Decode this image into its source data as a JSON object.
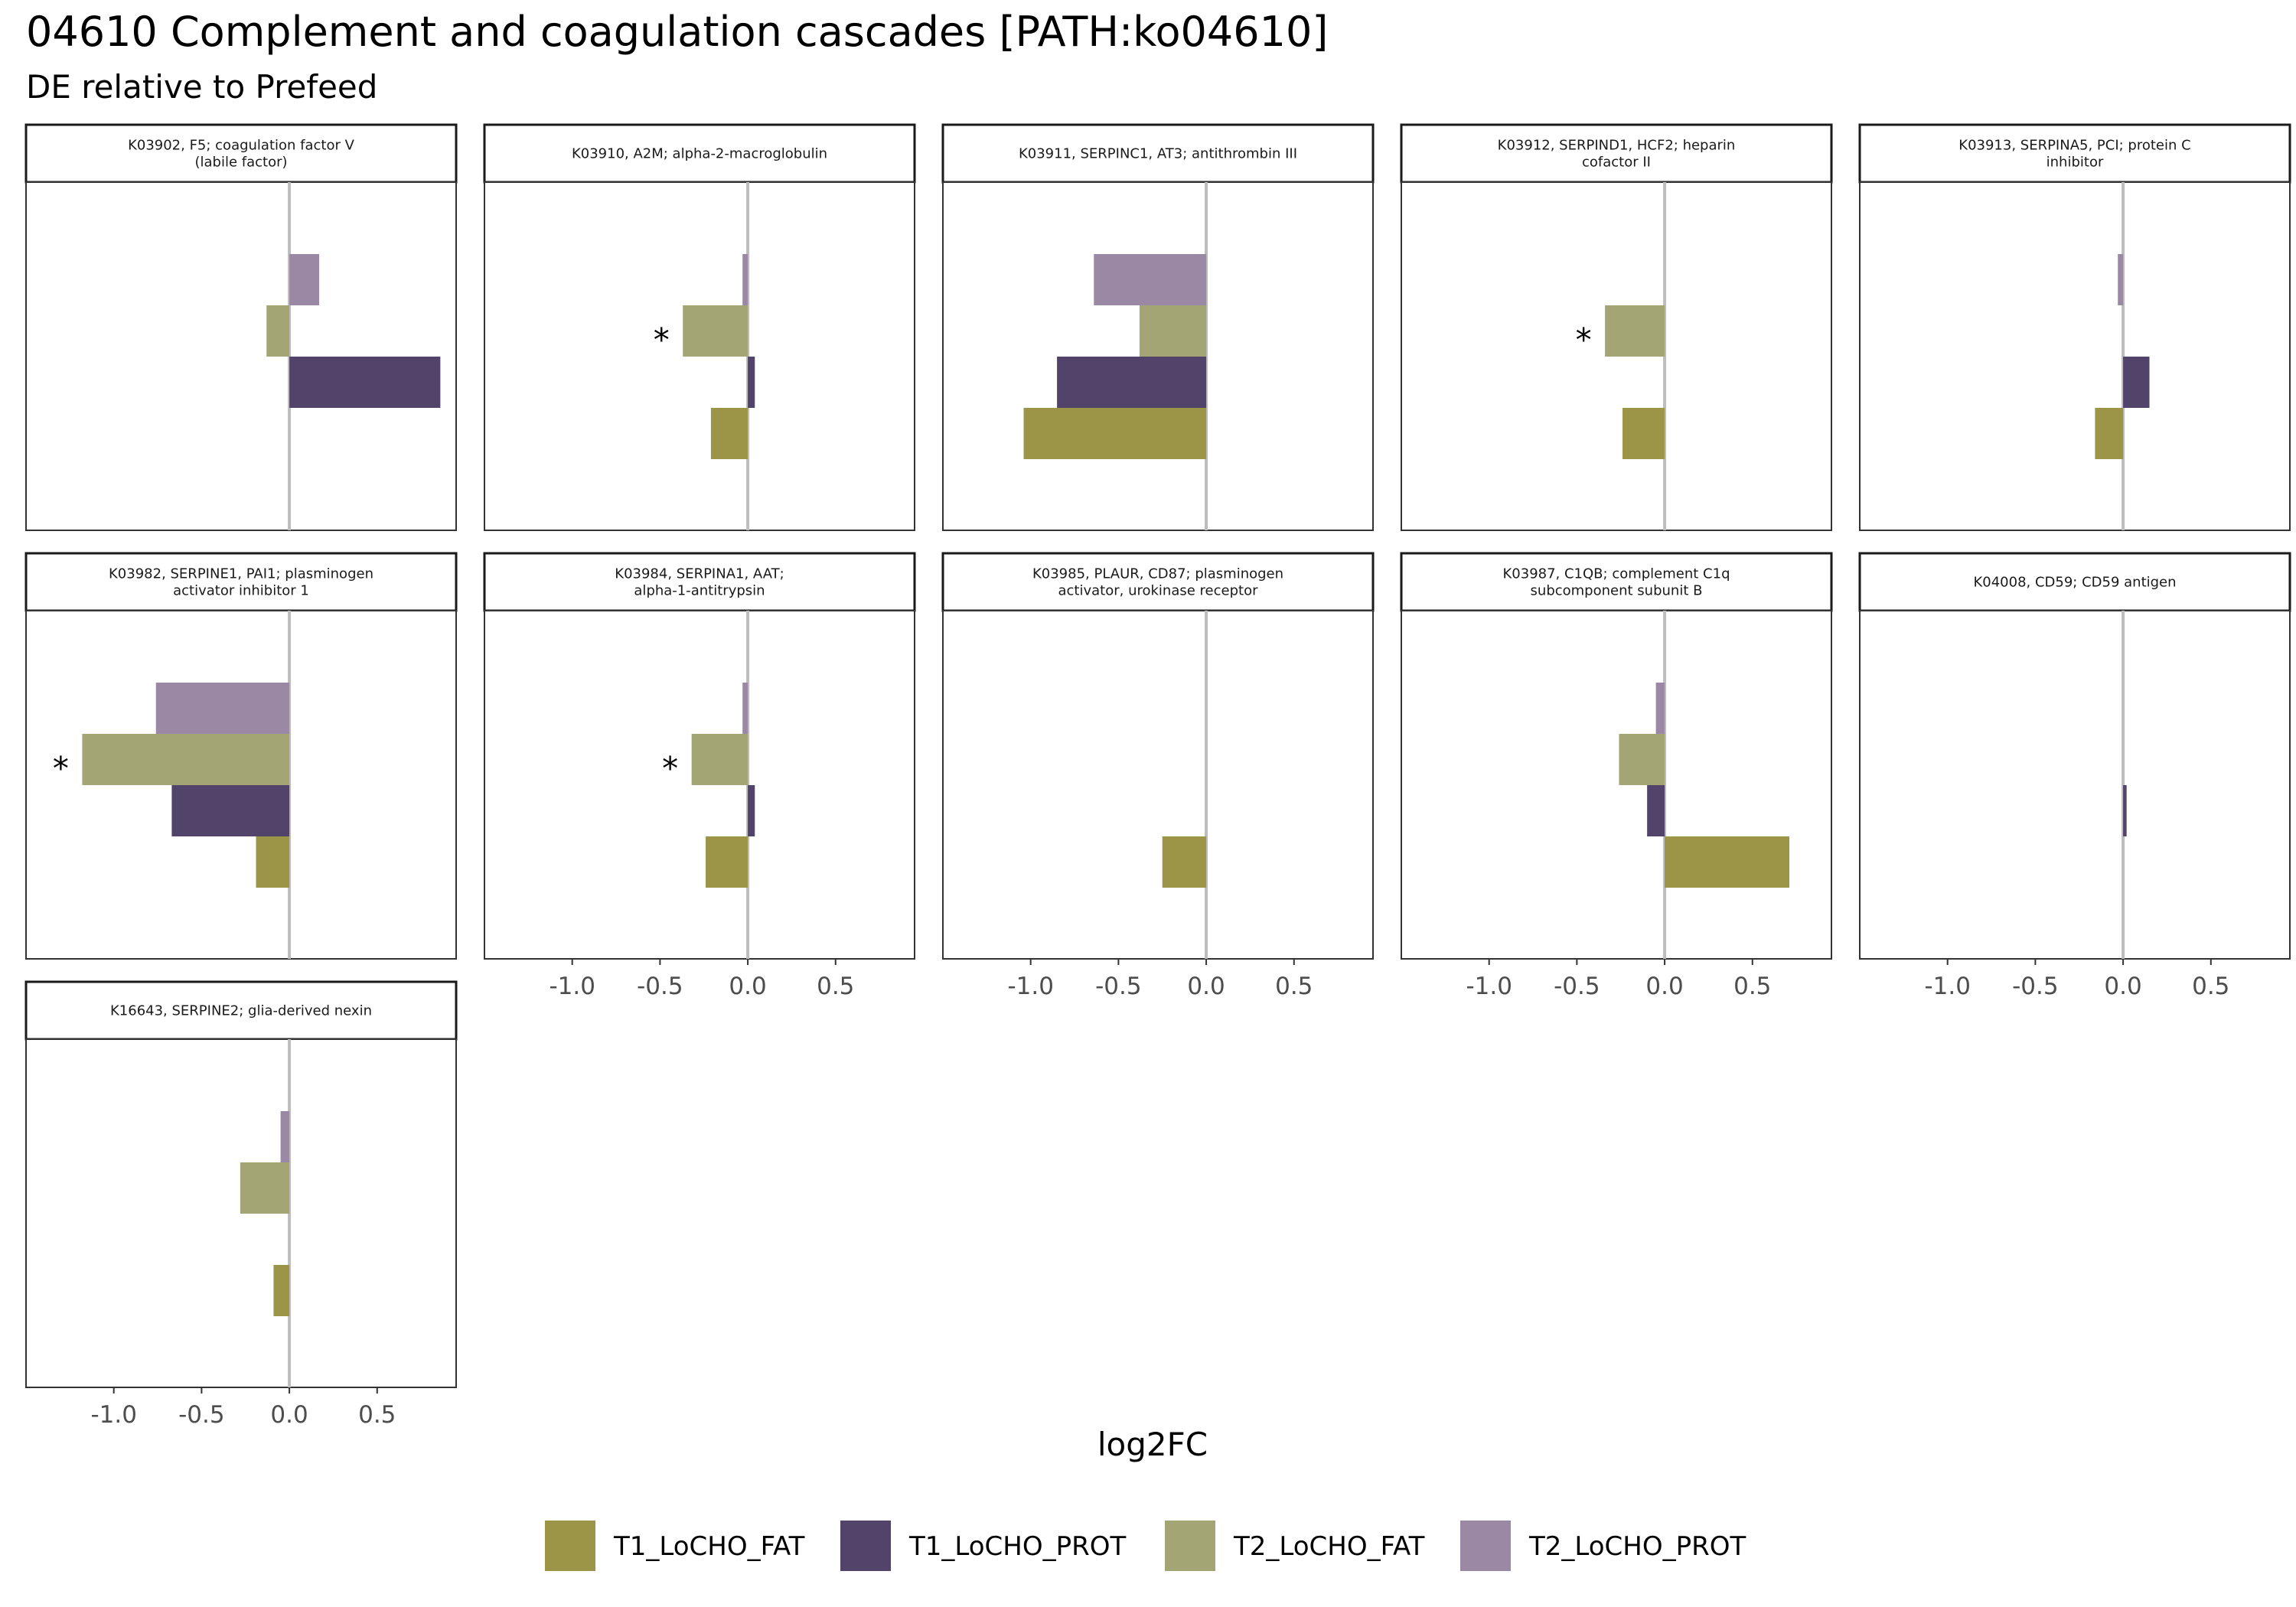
{
  "title": "04610 Complement and coagulation cascades [PATH:ko04610]",
  "subtitle": "DE relative to Prefeed",
  "colors": {
    "T1_LoCHO_FAT": "#9c9548",
    "T1_LoCHO_PROT": "#52436b",
    "T2_LoCHO_FAT": "#a3a674",
    "T2_LoCHO_PROT": "#9b88a5",
    "zero_line": "#bdbdbd",
    "tick_text": "#4d4d4d"
  },
  "chart_data": {
    "type": "bar",
    "orientation": "horizontal",
    "xlabel": "log2FC",
    "xlim": [
      -1.5,
      0.95
    ],
    "xticks": [
      -1.0,
      -0.5,
      0.0,
      0.5
    ],
    "xtick_labels": [
      "-1.0",
      "-0.5",
      "0.0",
      "0.5"
    ],
    "legend": {
      "position": "bottom",
      "entries": [
        "T1_LoCHO_FAT",
        "T1_LoCHO_PROT",
        "T2_LoCHO_FAT",
        "T2_LoCHO_PROT"
      ]
    },
    "significance_marker": "*",
    "panels": [
      {
        "label": [
          "K03902, F5; coagulation factor V",
          "(labile factor)"
        ],
        "values": {
          "T1_LoCHO_FAT": null,
          "T1_LoCHO_PROT": 0.86,
          "T2_LoCHO_FAT": -0.13,
          "T2_LoCHO_PROT": 0.17
        },
        "significant": []
      },
      {
        "label": [
          "K03910, A2M; alpha-2-macroglobulin"
        ],
        "values": {
          "T1_LoCHO_FAT": -0.21,
          "T1_LoCHO_PROT": 0.04,
          "T2_LoCHO_FAT": -0.37,
          "T2_LoCHO_PROT": -0.03
        },
        "significant": [
          "T2_LoCHO_FAT"
        ]
      },
      {
        "label": [
          "K03911, SERPINC1, AT3; antithrombin III"
        ],
        "values": {
          "T1_LoCHO_FAT": -1.04,
          "T1_LoCHO_PROT": -0.85,
          "T2_LoCHO_FAT": -0.38,
          "T2_LoCHO_PROT": -0.64
        },
        "significant": []
      },
      {
        "label": [
          "K03912, SERPIND1, HCF2; heparin",
          "cofactor II"
        ],
        "values": {
          "T1_LoCHO_FAT": -0.24,
          "T1_LoCHO_PROT": null,
          "T2_LoCHO_FAT": -0.34,
          "T2_LoCHO_PROT": null
        },
        "significant": [
          "T2_LoCHO_FAT"
        ]
      },
      {
        "label": [
          "K03913, SERPINA5, PCI; protein C",
          "inhibitor"
        ],
        "values": {
          "T1_LoCHO_FAT": -0.16,
          "T1_LoCHO_PROT": 0.15,
          "T2_LoCHO_FAT": null,
          "T2_LoCHO_PROT": -0.03
        },
        "significant": []
      },
      {
        "label": [
          "K03982, SERPINE1, PAI1; plasminogen",
          "activator inhibitor 1"
        ],
        "values": {
          "T1_LoCHO_FAT": -0.19,
          "T1_LoCHO_PROT": -0.67,
          "T2_LoCHO_FAT": -1.18,
          "T2_LoCHO_PROT": -0.76
        },
        "significant": [
          "T2_LoCHO_FAT"
        ]
      },
      {
        "label": [
          "K03984, SERPINA1, AAT;",
          "alpha-1-antitrypsin"
        ],
        "values": {
          "T1_LoCHO_FAT": -0.24,
          "T1_LoCHO_PROT": 0.04,
          "T2_LoCHO_FAT": -0.32,
          "T2_LoCHO_PROT": -0.03
        },
        "significant": [
          "T2_LoCHO_FAT"
        ]
      },
      {
        "label": [
          "K03985, PLAUR, CD87; plasminogen",
          "activator, urokinase receptor"
        ],
        "values": {
          "T1_LoCHO_FAT": -0.25,
          "T1_LoCHO_PROT": null,
          "T2_LoCHO_FAT": null,
          "T2_LoCHO_PROT": null
        },
        "significant": []
      },
      {
        "label": [
          "K03987, C1QB; complement C1q",
          "subcomponent subunit B"
        ],
        "values": {
          "T1_LoCHO_FAT": 0.71,
          "T1_LoCHO_PROT": -0.1,
          "T2_LoCHO_FAT": -0.26,
          "T2_LoCHO_PROT": -0.05
        },
        "significant": []
      },
      {
        "label": [
          "K04008, CD59; CD59 antigen"
        ],
        "values": {
          "T1_LoCHO_FAT": null,
          "T1_LoCHO_PROT": 0.02,
          "T2_LoCHO_FAT": null,
          "T2_LoCHO_PROT": null
        },
        "significant": []
      },
      {
        "label": [
          "K16643, SERPINE2; glia-derived nexin"
        ],
        "values": {
          "T1_LoCHO_FAT": -0.09,
          "T1_LoCHO_PROT": null,
          "T2_LoCHO_FAT": -0.28,
          "T2_LoCHO_PROT": -0.05
        },
        "significant": []
      }
    ]
  }
}
